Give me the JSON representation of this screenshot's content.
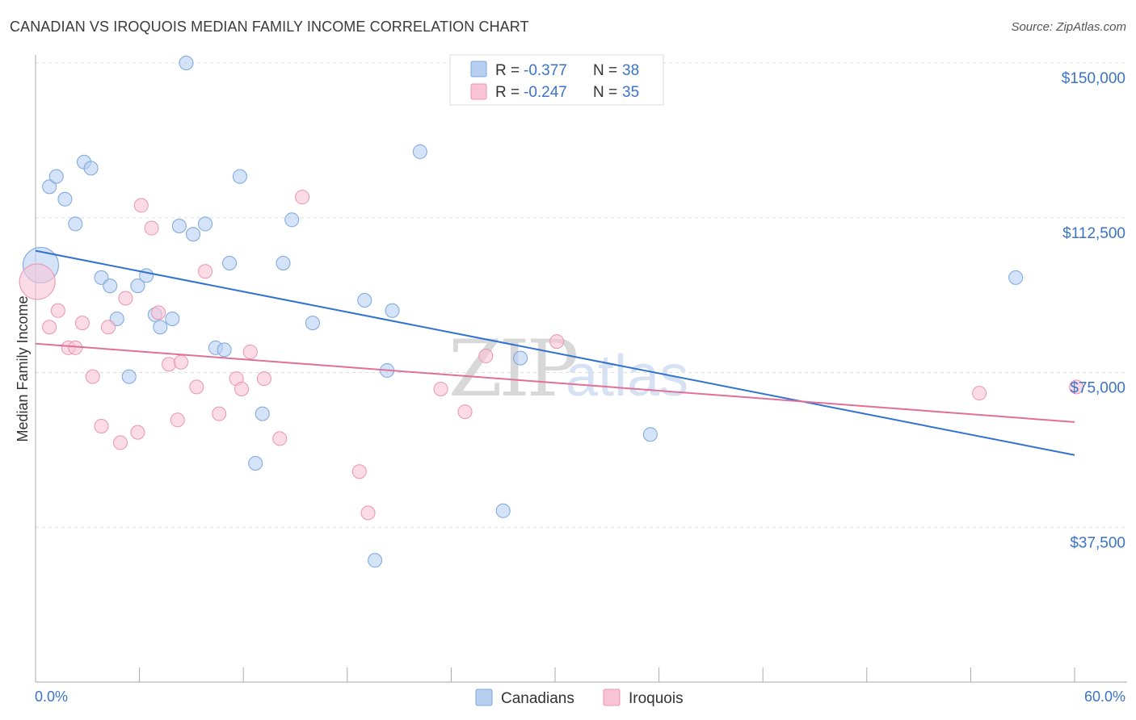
{
  "title": "CANADIAN VS IROQUOIS MEDIAN FAMILY INCOME CORRELATION CHART",
  "source": "Source: ZipAtlas.com",
  "watermark": {
    "zip": "ZIP",
    "atlas": "atlas"
  },
  "colors": {
    "canadians_fill": "#b7d0f1",
    "canadians_stroke": "#7aa6de",
    "canadians_line": "#2f72d0",
    "iroquois_fill": "#f8c4d5",
    "iroquois_stroke": "#eb93b1",
    "iroquois_line": "#e07098",
    "axis_label": "#3a73c8",
    "grid": "#dddddd"
  },
  "legend_top": {
    "rows": [
      {
        "r_label": "R = ",
        "r_value": "-0.377",
        "n_label": "N = ",
        "n_value": "38"
      },
      {
        "r_label": "R = ",
        "r_value": "-0.247",
        "n_label": "N = ",
        "n_value": "35"
      }
    ]
  },
  "legend_bottom": [
    "Canadians",
    "Iroquois"
  ],
  "chart_data": {
    "type": "scatter",
    "xlabel": "",
    "ylabel": "Median Family Income",
    "xlim": [
      0,
      60
    ],
    "ylim": [
      0,
      150000
    ],
    "x_tick_labels": [
      "0.0%",
      "60.0%"
    ],
    "y_ticks": [
      37500,
      75000,
      112500,
      150000
    ],
    "y_tick_labels": [
      "$37,500",
      "$75,000",
      "$112,500",
      "$150,000"
    ],
    "grid": "horizontal dashed",
    "series": [
      {
        "name": "Canadians",
        "trend": {
          "x": [
            0,
            60
          ],
          "y": [
            104500,
            55000
          ]
        },
        "points": [
          {
            "x": 0.3,
            "y": 101000,
            "big": true
          },
          {
            "x": 0.8,
            "y": 120000
          },
          {
            "x": 1.2,
            "y": 122500
          },
          {
            "x": 1.7,
            "y": 117000
          },
          {
            "x": 2.3,
            "y": 111000
          },
          {
            "x": 2.8,
            "y": 126000
          },
          {
            "x": 3.2,
            "y": 124500
          },
          {
            "x": 3.8,
            "y": 98000
          },
          {
            "x": 4.3,
            "y": 96000
          },
          {
            "x": 4.7,
            "y": 88000
          },
          {
            "x": 5.4,
            "y": 74000
          },
          {
            "x": 5.9,
            "y": 96000
          },
          {
            "x": 6.4,
            "y": 98500
          },
          {
            "x": 6.9,
            "y": 89000
          },
          {
            "x": 7.2,
            "y": 86000
          },
          {
            "x": 7.9,
            "y": 88000
          },
          {
            "x": 8.3,
            "y": 110500
          },
          {
            "x": 8.7,
            "y": 150000
          },
          {
            "x": 9.1,
            "y": 108500
          },
          {
            "x": 9.8,
            "y": 111000
          },
          {
            "x": 10.4,
            "y": 81000
          },
          {
            "x": 10.9,
            "y": 80500
          },
          {
            "x": 11.2,
            "y": 101500
          },
          {
            "x": 11.8,
            "y": 122500
          },
          {
            "x": 12.7,
            "y": 53000
          },
          {
            "x": 13.1,
            "y": 65000
          },
          {
            "x": 14.3,
            "y": 101500
          },
          {
            "x": 14.8,
            "y": 112000
          },
          {
            "x": 16.0,
            "y": 87000
          },
          {
            "x": 19.0,
            "y": 92500
          },
          {
            "x": 19.6,
            "y": 29500
          },
          {
            "x": 20.3,
            "y": 75500
          },
          {
            "x": 20.6,
            "y": 90000
          },
          {
            "x": 22.2,
            "y": 128500
          },
          {
            "x": 27.0,
            "y": 41500
          },
          {
            "x": 28.0,
            "y": 78500
          },
          {
            "x": 35.5,
            "y": 60000
          },
          {
            "x": 56.6,
            "y": 98000
          }
        ]
      },
      {
        "name": "Iroquois",
        "trend": {
          "x": [
            0,
            60
          ],
          "y": [
            82000,
            63000
          ]
        },
        "points": [
          {
            "x": 0.1,
            "y": 97000,
            "big": true
          },
          {
            "x": 0.8,
            "y": 86000
          },
          {
            "x": 1.3,
            "y": 90000
          },
          {
            "x": 1.9,
            "y": 81000
          },
          {
            "x": 2.3,
            "y": 81000
          },
          {
            "x": 2.7,
            "y": 87000
          },
          {
            "x": 3.3,
            "y": 74000
          },
          {
            "x": 3.8,
            "y": 62000
          },
          {
            "x": 4.2,
            "y": 86000
          },
          {
            "x": 4.9,
            "y": 58000
          },
          {
            "x": 5.2,
            "y": 93000
          },
          {
            "x": 5.9,
            "y": 60500
          },
          {
            "x": 6.1,
            "y": 115500
          },
          {
            "x": 6.7,
            "y": 110000
          },
          {
            "x": 7.1,
            "y": 89500
          },
          {
            "x": 7.7,
            "y": 77000
          },
          {
            "x": 8.2,
            "y": 63500
          },
          {
            "x": 8.4,
            "y": 77500
          },
          {
            "x": 9.3,
            "y": 71500
          },
          {
            "x": 9.8,
            "y": 99500
          },
          {
            "x": 10.6,
            "y": 65000
          },
          {
            "x": 11.6,
            "y": 73500
          },
          {
            "x": 11.9,
            "y": 71000
          },
          {
            "x": 12.4,
            "y": 80000
          },
          {
            "x": 13.2,
            "y": 73500
          },
          {
            "x": 14.1,
            "y": 59000
          },
          {
            "x": 15.4,
            "y": 117500
          },
          {
            "x": 18.7,
            "y": 51000
          },
          {
            "x": 19.2,
            "y": 41000
          },
          {
            "x": 23.4,
            "y": 71000
          },
          {
            "x": 24.8,
            "y": 65500
          },
          {
            "x": 26.0,
            "y": 79000
          },
          {
            "x": 30.1,
            "y": 82500
          },
          {
            "x": 54.5,
            "y": 70000
          },
          {
            "x": 60.1,
            "y": 71500
          }
        ]
      }
    ]
  }
}
